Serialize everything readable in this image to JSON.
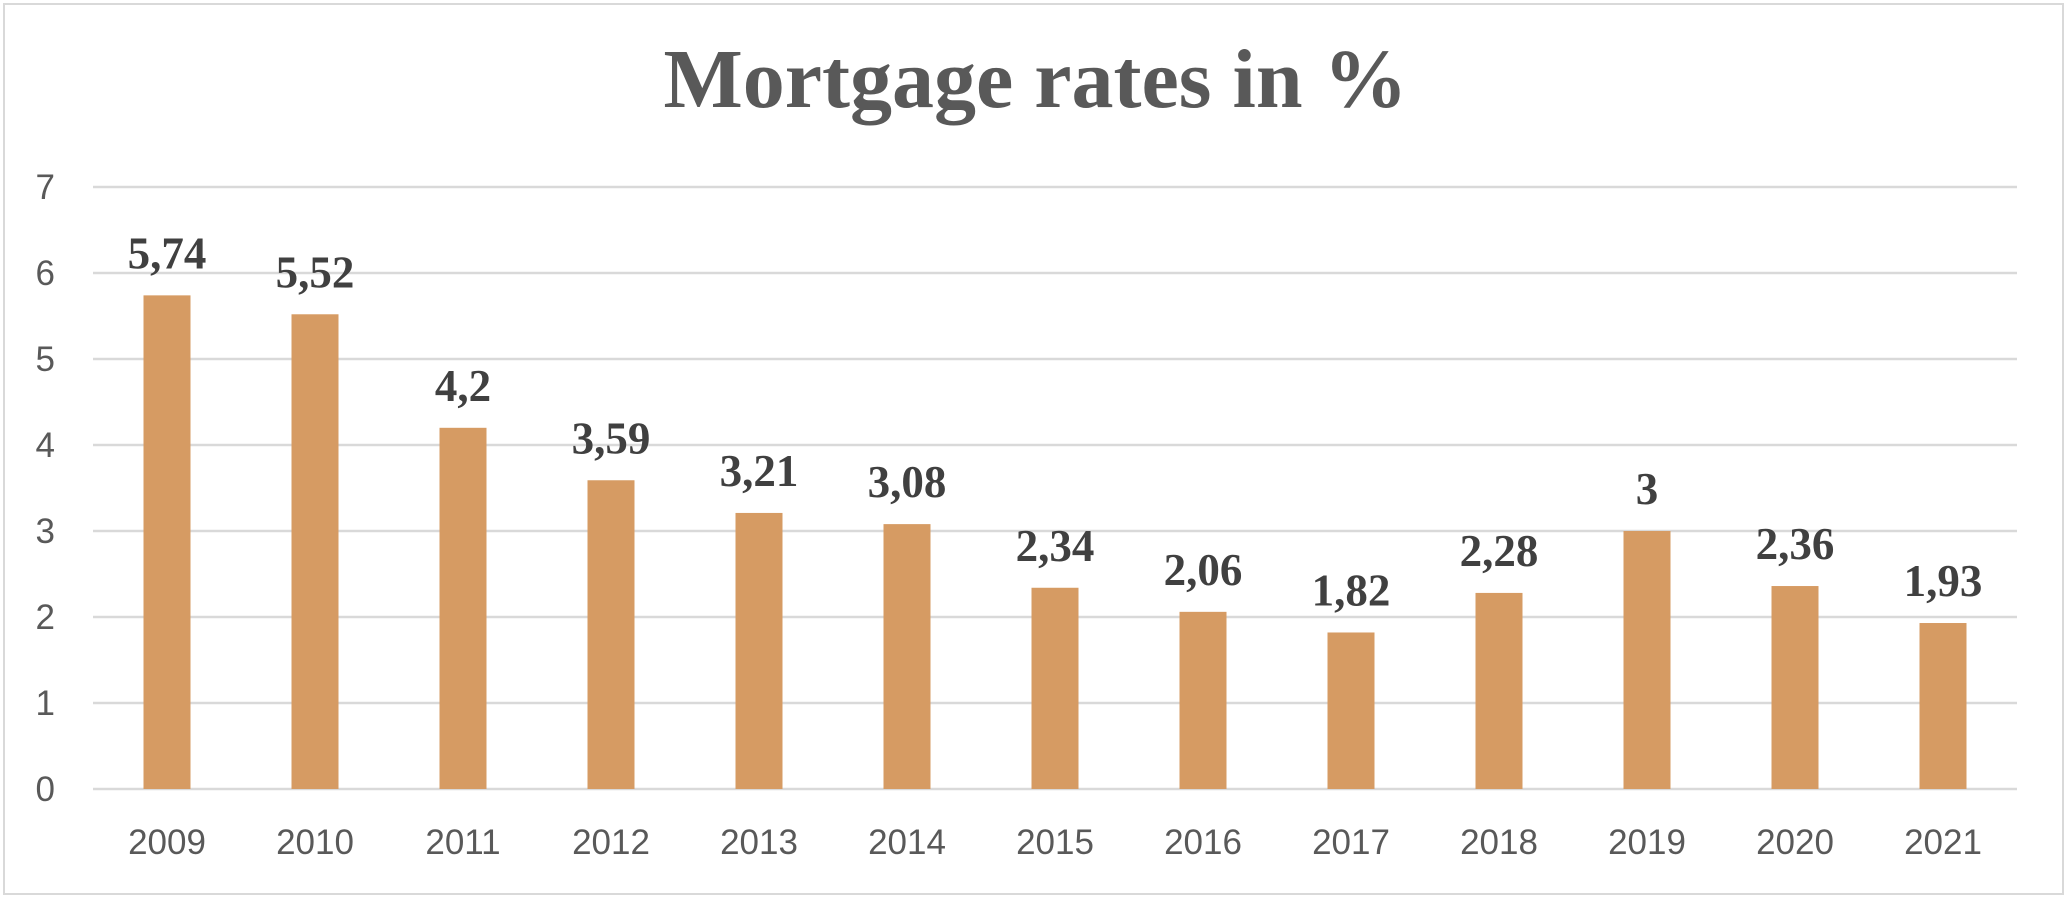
{
  "chart_data": {
    "type": "bar",
    "title": "Mortgage rates in %",
    "categories": [
      "2009",
      "2010",
      "2011",
      "2012",
      "2013",
      "2014",
      "2015",
      "2016",
      "2017",
      "2018",
      "2019",
      "2020",
      "2021"
    ],
    "values": [
      5.74,
      5.52,
      4.2,
      3.59,
      3.21,
      3.08,
      2.34,
      2.06,
      1.82,
      2.28,
      3,
      2.36,
      1.93
    ],
    "data_labels": [
      "5,74",
      "5,52",
      "4,2",
      "3,59",
      "3,21",
      "3,08",
      "2,34",
      "2,06",
      "1,82",
      "2,28",
      "3",
      "2,36",
      "1,93"
    ],
    "ylim": [
      0,
      7
    ],
    "yticks": [
      "0",
      "1",
      "2",
      "3",
      "4",
      "5",
      "6",
      "7"
    ],
    "grid": true,
    "legend": "none",
    "bar_color": "#d69b63",
    "grid_color": "#d9d9d9"
  }
}
